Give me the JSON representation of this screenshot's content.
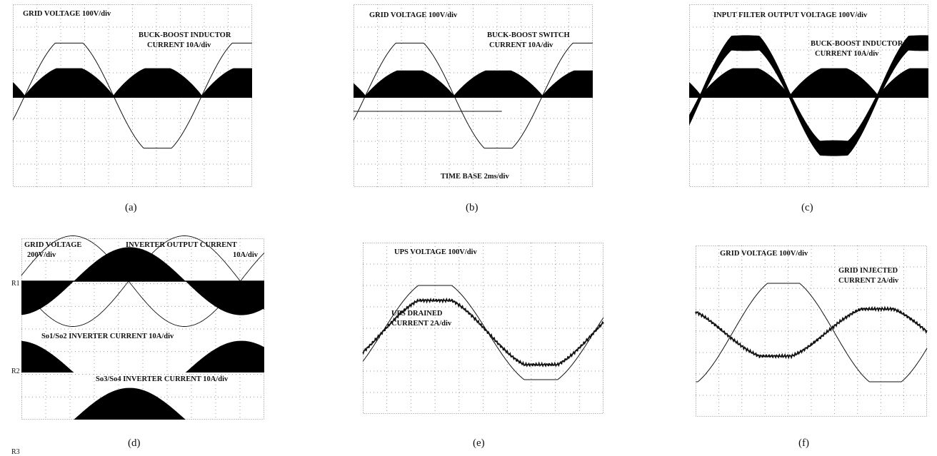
{
  "chart_data": [
    {
      "type": "line",
      "panel": "a",
      "caption": "(a)",
      "annotations": [
        "GRID VOLTAGE 100V/div",
        "BUCK-BOOST INDUCTOR",
        "CURRENT 10A/div"
      ],
      "grid": true,
      "series": [
        {
          "kind": "voltage",
          "amplitude_div": 2.3,
          "flat_top": true,
          "phase": 0.2
        },
        {
          "kind": "current_envelope",
          "amplitude_div": 1.2,
          "rectified": true,
          "phase": 0.2
        }
      ]
    },
    {
      "type": "line",
      "panel": "b",
      "caption": "(b)",
      "annotations": [
        "GRID VOLTAGE 100V/div",
        "BUCK-BOOST SWITCH",
        "CURRENT  10A/div",
        "TIME BASE 2ms/div"
      ],
      "grid": true,
      "series": [
        {
          "kind": "voltage",
          "amplitude_div": 2.3,
          "flat_top": true,
          "phase": 0.2
        },
        {
          "kind": "current_envelope",
          "amplitude_div": 1.1,
          "rectified": true,
          "phase": 0.2
        }
      ]
    },
    {
      "type": "line",
      "panel": "c",
      "caption": "(c)",
      "annotations": [
        "INPUT FILTER OUTPUT VOLTAGE 100V/div",
        "BUCK-BOOST INDUCTOR",
        "CURRENT 10A/div"
      ],
      "grid": true,
      "series": [
        {
          "kind": "voltage_thick",
          "amplitude_div": 2.3,
          "flat_top": true,
          "phase": 0.2
        },
        {
          "kind": "current_envelope",
          "amplitude_div": 1.2,
          "rectified": true,
          "phase": 0.2
        }
      ]
    },
    {
      "type": "line",
      "panel": "d",
      "caption": "(d)",
      "annotations": [
        "GRID VOLTAGE",
        "200V/div",
        "INVERTER OUTPUT CURRENT",
        "10A/div",
        "So1/So2 INVERTER CURRENT 10A/div",
        "So3/So4 INVERTER CURRENT 10A/div"
      ],
      "reference_labels": [
        "R1",
        "R2",
        "R3"
      ],
      "grid": true,
      "series": [
        {
          "kind": "voltage",
          "amplitude_div": 1.0
        },
        {
          "kind": "inverter_current",
          "amplitude_div": 1.0
        },
        {
          "kind": "so12_current",
          "amplitude_div": 1.0
        },
        {
          "kind": "so34_current",
          "amplitude_div": 1.0
        }
      ]
    },
    {
      "type": "line",
      "panel": "e",
      "caption": "(e)",
      "annotations": [
        "UPS VOLTAGE 100V/div",
        "UPS DRAINED",
        "CURRENT 2A/div"
      ],
      "grid": true,
      "series": [
        {
          "kind": "voltage",
          "amplitude_div": 2.2,
          "flat_top": true
        },
        {
          "kind": "current",
          "amplitude_div": 1.5,
          "flat_top": true
        }
      ]
    },
    {
      "type": "line",
      "panel": "f",
      "caption": "(f)",
      "annotations": [
        "GRID VOLTAGE 100V/div",
        "GRID INJECTED",
        "CURRENT 2A/div"
      ],
      "grid": true,
      "series": [
        {
          "kind": "voltage",
          "amplitude_div": 2.3,
          "flat_top": true
        },
        {
          "kind": "current",
          "amplitude_div": 1.1,
          "flat_top": true,
          "inverted": true
        }
      ]
    }
  ]
}
